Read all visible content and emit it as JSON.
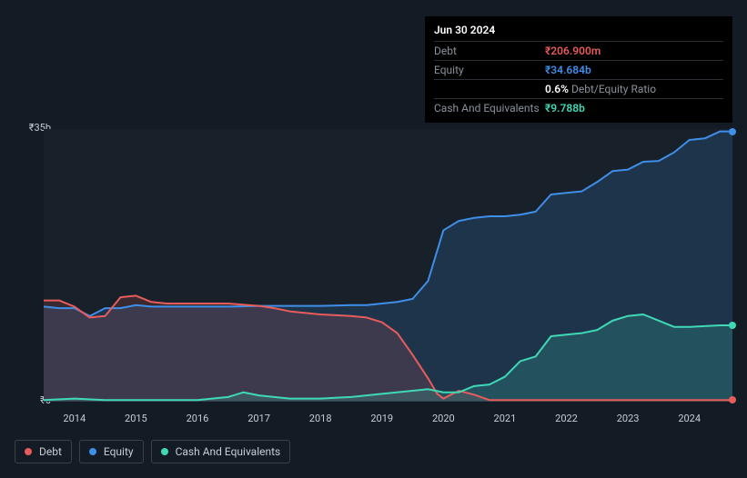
{
  "tooltip": {
    "date": "Jun 30 2024",
    "rows": [
      {
        "label": "Debt",
        "value": "₹206.900m",
        "color": "#e85c5c"
      },
      {
        "label": "Equity",
        "value": "₹34.684b",
        "color": "#3f8ee8"
      },
      {
        "label": "",
        "value": "0.6%",
        "suffix": " Debt/Equity Ratio",
        "color": "#ffffff"
      },
      {
        "label": "Cash And Equivalents",
        "value": "₹9.788b",
        "color": "#3fd9b6"
      }
    ]
  },
  "chart": {
    "type": "area-line",
    "background": "#131b24",
    "plot_background_top": "#182029",
    "plot_background_bottom": "#131b24",
    "y_max": 35,
    "y_min": 0,
    "y_max_label": "₹35b",
    "y_zero_label": "₹0",
    "axis_label_color": "#c8cdd3",
    "axis_fontsize": 11,
    "x_years": [
      "2014",
      "2015",
      "2016",
      "2017",
      "2018",
      "2019",
      "2020",
      "2021",
      "2022",
      "2023",
      "2024"
    ],
    "x_start": 2013.5,
    "x_end": 2024.7,
    "series": [
      {
        "name": "Equity",
        "color": "#3f8ee8",
        "fill": "rgba(63,142,232,0.18)",
        "line_width": 2,
        "points": [
          [
            2013.5,
            12.2
          ],
          [
            2013.75,
            12.0
          ],
          [
            2014.0,
            12.0
          ],
          [
            2014.25,
            11.0
          ],
          [
            2014.5,
            12.0
          ],
          [
            2014.75,
            12.0
          ],
          [
            2015.0,
            12.4
          ],
          [
            2015.25,
            12.2
          ],
          [
            2015.5,
            12.2
          ],
          [
            2016.0,
            12.2
          ],
          [
            2016.5,
            12.2
          ],
          [
            2017.0,
            12.3
          ],
          [
            2017.5,
            12.3
          ],
          [
            2018.0,
            12.3
          ],
          [
            2018.5,
            12.4
          ],
          [
            2018.75,
            12.4
          ],
          [
            2019.0,
            12.6
          ],
          [
            2019.25,
            12.8
          ],
          [
            2019.5,
            13.2
          ],
          [
            2019.75,
            15.5
          ],
          [
            2020.0,
            22.0
          ],
          [
            2020.25,
            23.2
          ],
          [
            2020.5,
            23.6
          ],
          [
            2020.75,
            23.8
          ],
          [
            2021.0,
            23.8
          ],
          [
            2021.25,
            24.0
          ],
          [
            2021.5,
            24.4
          ],
          [
            2021.75,
            26.6
          ],
          [
            2022.0,
            26.8
          ],
          [
            2022.25,
            27.0
          ],
          [
            2022.5,
            28.2
          ],
          [
            2022.75,
            29.6
          ],
          [
            2023.0,
            29.8
          ],
          [
            2023.25,
            30.8
          ],
          [
            2023.5,
            30.9
          ],
          [
            2023.75,
            32.0
          ],
          [
            2024.0,
            33.6
          ],
          [
            2024.25,
            33.8
          ],
          [
            2024.5,
            34.7
          ],
          [
            2024.7,
            34.7
          ]
        ]
      },
      {
        "name": "Debt",
        "color": "#e85c5c",
        "fill": "rgba(232,92,92,0.16)",
        "line_width": 2,
        "points": [
          [
            2013.5,
            13.0
          ],
          [
            2013.75,
            13.0
          ],
          [
            2014.0,
            12.2
          ],
          [
            2014.25,
            10.8
          ],
          [
            2014.5,
            11.0
          ],
          [
            2014.75,
            13.4
          ],
          [
            2015.0,
            13.6
          ],
          [
            2015.25,
            12.8
          ],
          [
            2015.5,
            12.6
          ],
          [
            2016.0,
            12.6
          ],
          [
            2016.5,
            12.6
          ],
          [
            2017.0,
            12.3
          ],
          [
            2017.25,
            12.0
          ],
          [
            2017.5,
            11.6
          ],
          [
            2018.0,
            11.2
          ],
          [
            2018.5,
            11.0
          ],
          [
            2018.75,
            10.8
          ],
          [
            2019.0,
            10.2
          ],
          [
            2019.25,
            8.8
          ],
          [
            2019.5,
            6.0
          ],
          [
            2019.75,
            3.0
          ],
          [
            2019.9,
            1.0
          ],
          [
            2020.0,
            0.4
          ],
          [
            2020.25,
            1.4
          ],
          [
            2020.5,
            0.9
          ],
          [
            2020.75,
            0.2
          ],
          [
            2021.0,
            0.2
          ],
          [
            2021.5,
            0.2
          ],
          [
            2022.0,
            0.2
          ],
          [
            2022.5,
            0.2
          ],
          [
            2023.0,
            0.2
          ],
          [
            2023.5,
            0.2
          ],
          [
            2024.0,
            0.2
          ],
          [
            2024.5,
            0.21
          ],
          [
            2024.7,
            0.21
          ]
        ]
      },
      {
        "name": "Cash And Equivalents",
        "color": "#3fd9b6",
        "fill": "rgba(63,217,182,0.18)",
        "line_width": 2,
        "points": [
          [
            2013.5,
            0.2
          ],
          [
            2014.0,
            0.4
          ],
          [
            2014.5,
            0.2
          ],
          [
            2015.0,
            0.2
          ],
          [
            2015.5,
            0.2
          ],
          [
            2016.0,
            0.2
          ],
          [
            2016.5,
            0.6
          ],
          [
            2016.75,
            1.2
          ],
          [
            2017.0,
            0.8
          ],
          [
            2017.5,
            0.4
          ],
          [
            2018.0,
            0.4
          ],
          [
            2018.5,
            0.6
          ],
          [
            2019.0,
            1.0
          ],
          [
            2019.5,
            1.4
          ],
          [
            2019.75,
            1.6
          ],
          [
            2020.0,
            1.2
          ],
          [
            2020.25,
            1.2
          ],
          [
            2020.5,
            2.0
          ],
          [
            2020.75,
            2.2
          ],
          [
            2021.0,
            3.2
          ],
          [
            2021.25,
            5.2
          ],
          [
            2021.5,
            5.8
          ],
          [
            2021.75,
            8.4
          ],
          [
            2022.0,
            8.6
          ],
          [
            2022.25,
            8.8
          ],
          [
            2022.5,
            9.2
          ],
          [
            2022.75,
            10.4
          ],
          [
            2023.0,
            11.0
          ],
          [
            2023.25,
            11.2
          ],
          [
            2023.5,
            10.4
          ],
          [
            2023.75,
            9.6
          ],
          [
            2024.0,
            9.6
          ],
          [
            2024.25,
            9.7
          ],
          [
            2024.5,
            9.8
          ],
          [
            2024.7,
            9.8
          ]
        ]
      }
    ],
    "end_markers": [
      {
        "color": "#3f8ee8",
        "x": 2024.7,
        "y": 34.7
      },
      {
        "color": "#3fd9b6",
        "x": 2024.7,
        "y": 9.8
      },
      {
        "color": "#e85c5c",
        "x": 2024.7,
        "y": 0.21
      }
    ]
  },
  "legend": [
    {
      "label": "Debt",
      "color": "#e85c5c"
    },
    {
      "label": "Equity",
      "color": "#3f8ee8"
    },
    {
      "label": "Cash And Equivalents",
      "color": "#3fd9b6"
    }
  ]
}
